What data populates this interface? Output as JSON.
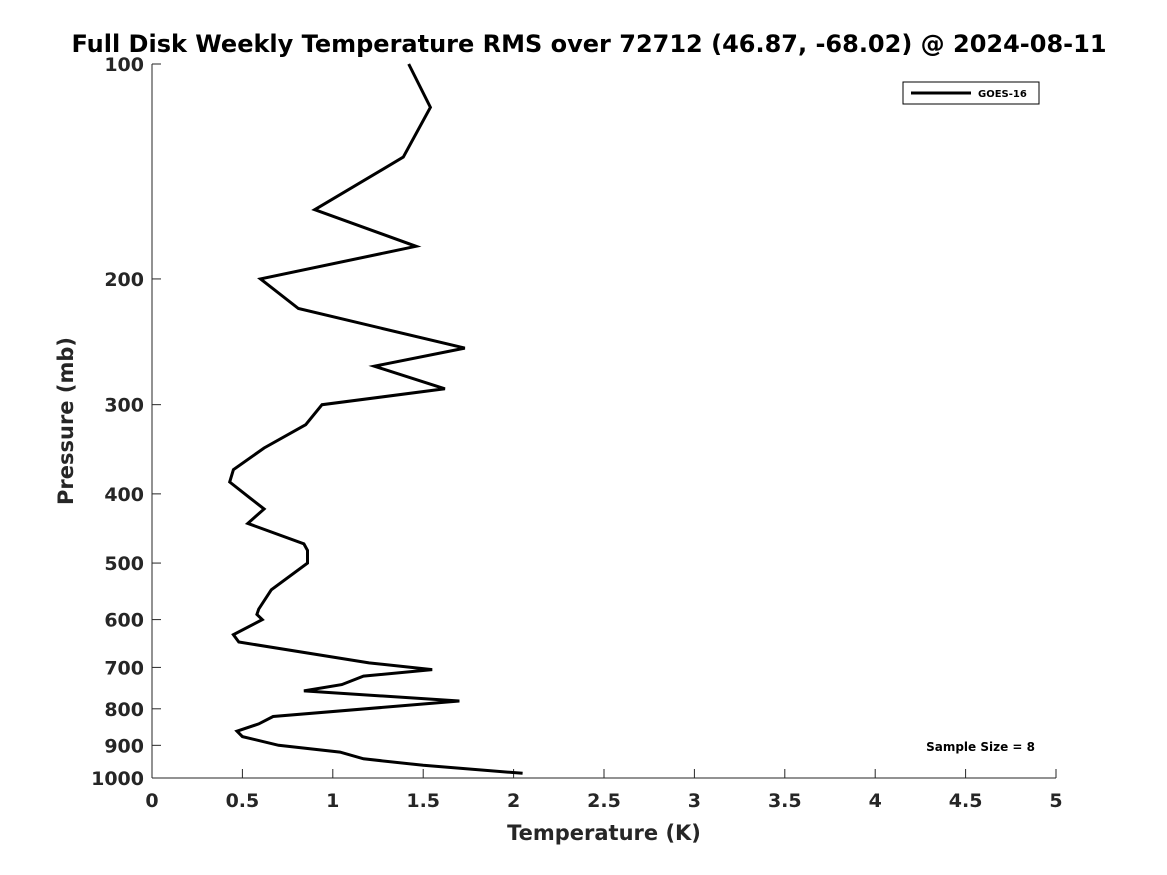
{
  "chart_data": {
    "type": "line",
    "title": "Full Disk Weekly Temperature RMS over 72712 (46.87, -68.02) @ 2024-08-11",
    "xlabel": "Temperature (K)",
    "ylabel": "Pressure (mb)",
    "xlim": [
      0,
      5
    ],
    "ylim": [
      100,
      1000
    ],
    "y_scale": "log",
    "y_reversed": true,
    "x_ticks": [
      "0",
      "0.5",
      "1",
      "1.5",
      "2",
      "2.5",
      "3",
      "3.5",
      "4",
      "4.5",
      "5"
    ],
    "y_ticks": [
      "100",
      "200",
      "300",
      "400",
      "500",
      "600",
      "700",
      "800",
      "900",
      "1000"
    ],
    "grid": false,
    "legend_position": "top-right",
    "series": [
      {
        "name": "GOES-16",
        "color": "#000000",
        "points": [
          [
            1.42,
            100
          ],
          [
            1.54,
            115
          ],
          [
            1.39,
            135
          ],
          [
            0.9,
            160
          ],
          [
            1.46,
            180
          ],
          [
            0.6,
            200
          ],
          [
            0.81,
            220
          ],
          [
            1.73,
            250
          ],
          [
            1.23,
            265
          ],
          [
            1.62,
            285
          ],
          [
            0.94,
            300
          ],
          [
            0.85,
            320
          ],
          [
            0.62,
            345
          ],
          [
            0.45,
            370
          ],
          [
            0.43,
            385
          ],
          [
            0.54,
            405
          ],
          [
            0.62,
            420
          ],
          [
            0.53,
            440
          ],
          [
            0.84,
            470
          ],
          [
            0.86,
            480
          ],
          [
            0.86,
            500
          ],
          [
            0.66,
            545
          ],
          [
            0.59,
            580
          ],
          [
            0.58,
            590
          ],
          [
            0.61,
            600
          ],
          [
            0.45,
            630
          ],
          [
            0.48,
            645
          ],
          [
            1.2,
            690
          ],
          [
            1.55,
            705
          ],
          [
            1.17,
            720
          ],
          [
            1.05,
            740
          ],
          [
            0.84,
            755
          ],
          [
            1.7,
            780
          ],
          [
            0.67,
            820
          ],
          [
            0.59,
            840
          ],
          [
            0.47,
            860
          ],
          [
            0.5,
            875
          ],
          [
            0.7,
            900
          ],
          [
            1.04,
            920
          ],
          [
            1.17,
            940
          ],
          [
            1.5,
            960
          ],
          [
            2.05,
            985
          ]
        ]
      }
    ],
    "annotation": "Sample Size = 8"
  }
}
